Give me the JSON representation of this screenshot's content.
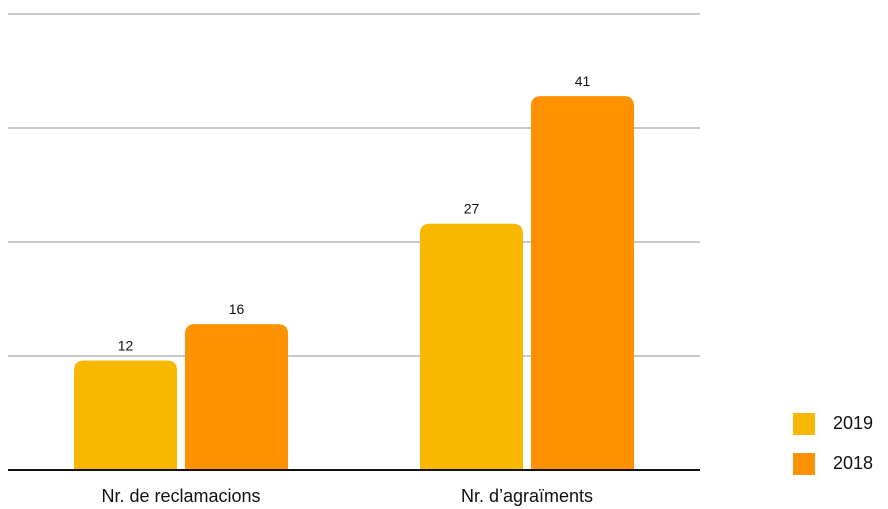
{
  "chart_data": {
    "type": "bar",
    "categories": [
      "Nr. de reclamacions",
      "Nr. d’agraïments"
    ],
    "series": [
      {
        "name": "2019",
        "color": "#f9b800",
        "values": [
          12,
          27
        ]
      },
      {
        "name": "2018",
        "color": "#ff9200",
        "values": [
          16,
          41
        ]
      }
    ],
    "ylim": [
      0,
      50
    ],
    "yticks": [
      0,
      12.5,
      25,
      37.5,
      50
    ],
    "grid": true,
    "legend": "right"
  }
}
